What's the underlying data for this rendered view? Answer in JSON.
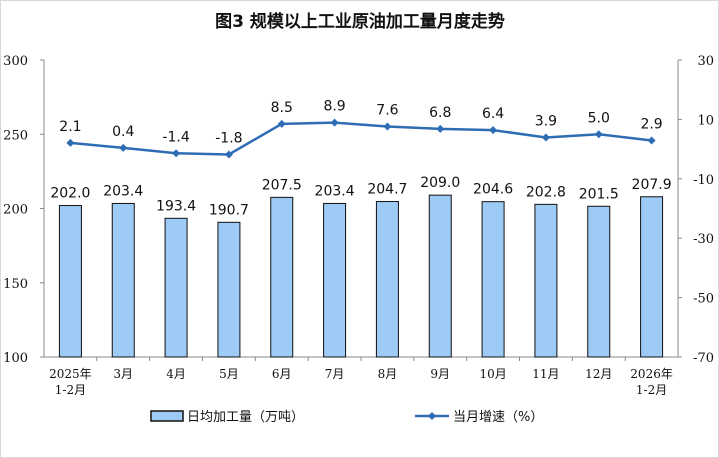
{
  "chart_data": {
    "type": "bar+line",
    "title": "图3  规模以上工业原油加工量月度走势",
    "categories": [
      [
        "2025年",
        "1-2月"
      ],
      [
        "3月"
      ],
      [
        "4月"
      ],
      [
        "5月"
      ],
      [
        "6月"
      ],
      [
        "7月"
      ],
      [
        "8月"
      ],
      [
        "9月"
      ],
      [
        "10月"
      ],
      [
        "11月"
      ],
      [
        "12月"
      ],
      [
        "2026年",
        "1-2月"
      ]
    ],
    "series": [
      {
        "name": "日均加工量（万吨）",
        "type": "bar",
        "axis": "left",
        "color": "#9DCBF5",
        "values": [
          202.0,
          203.4,
          193.4,
          190.7,
          207.5,
          203.4,
          204.7,
          209.0,
          204.6,
          202.8,
          201.5,
          207.9
        ]
      },
      {
        "name": "当月增速（%）",
        "type": "line",
        "axis": "right",
        "color": "#2E6DB4",
        "values": [
          2.1,
          0.4,
          -1.4,
          -1.8,
          8.5,
          8.9,
          7.6,
          6.8,
          6.4,
          3.9,
          5.0,
          2.9
        ]
      }
    ],
    "y_left": {
      "ylim": [
        100,
        300
      ],
      "ticks": [
        100,
        150,
        200,
        250,
        300
      ]
    },
    "y_right": {
      "ylim": [
        -70,
        30
      ],
      "ticks": [
        -70,
        -50,
        -30,
        -10,
        10,
        30
      ]
    },
    "legend": "bottom",
    "grid": false
  }
}
